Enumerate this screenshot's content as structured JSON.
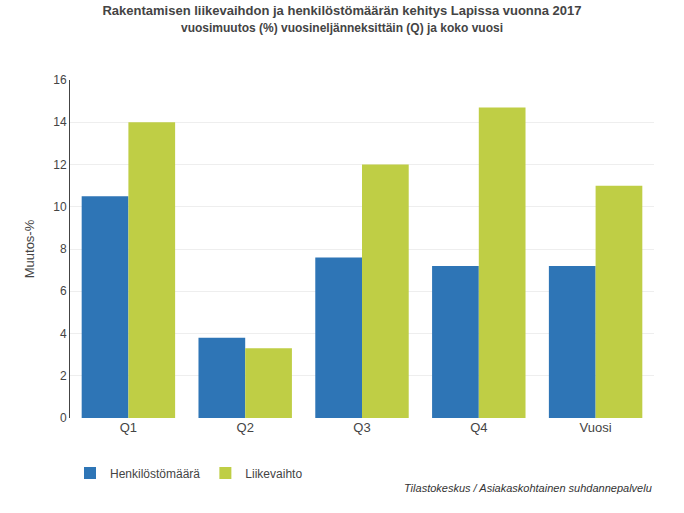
{
  "chart_data": {
    "type": "bar",
    "title": "Rakentamisen liikevaihdon ja henkilöstömäärän kehitys Lapissa vuonna 2017",
    "subtitle": "vuosimuutos (%) vuosineljänneksittäin (Q) ja koko vuosi",
    "ylabel": "Muutos-%",
    "annotations": [
      "Tilastokeskus / Asiakaskohtainen suhdannepalvelu"
    ],
    "categories": [
      "Q1",
      "Q2",
      "Q3",
      "Q4",
      "Vuosi"
    ],
    "series": [
      {
        "name": "Henkilöstömäärä",
        "color": "#2E75B6",
        "values": [
          10.5,
          3.8,
          7.6,
          7.2,
          7.2
        ]
      },
      {
        "name": "Liikevaihto",
        "color": "#BFCE45",
        "values": [
          14.0,
          3.3,
          12.0,
          14.7,
          11.0
        ]
      }
    ],
    "ylim": [
      0,
      16
    ],
    "yticks": [
      0,
      2,
      4,
      6,
      8,
      10,
      12,
      14,
      16
    ],
    "grid": true,
    "legend": "bottom"
  }
}
